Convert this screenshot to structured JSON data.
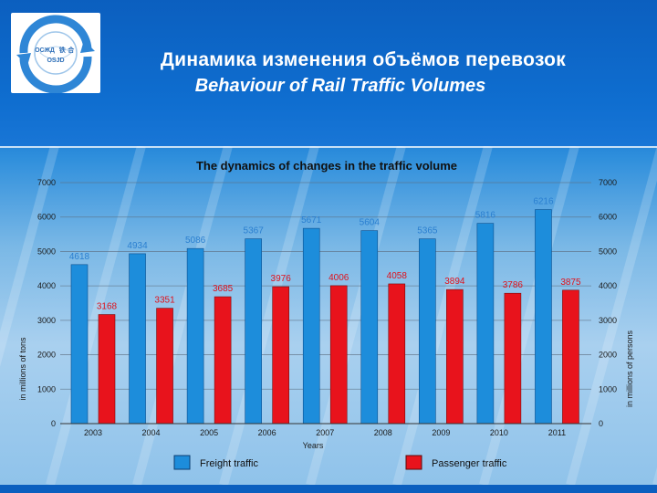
{
  "header": {
    "title_ru": "Динамика изменения объёмов перевозок",
    "title_en": "Behaviour of  Rail Traffic Volumes",
    "logo": {
      "name": "osjd-logo",
      "text_left": "ОСЖД",
      "text_right": "铁 合",
      "text_bottom": "OSJD"
    }
  },
  "colors": {
    "freight": "#1d8ddb",
    "passenger": "#e8131c",
    "freight_label": "#2a7fd0",
    "passenger_label": "#e0101a"
  },
  "chart_data": {
    "type": "bar",
    "title": "The dynamics of changes in the traffic volume",
    "xlabel": "Years",
    "ylabel_left": "in millions of tons",
    "ylabel_right": "in millions of persons",
    "ylim": [
      0,
      7000
    ],
    "yticks": [
      0,
      1000,
      2000,
      3000,
      4000,
      5000,
      6000,
      7000
    ],
    "grid": true,
    "legend_position": "bottom",
    "categories": [
      "2003",
      "2004",
      "2005",
      "2006",
      "2007",
      "2008",
      "2009",
      "2010",
      "2011"
    ],
    "series": [
      {
        "name": "Freight traffic",
        "values": [
          4618,
          4934,
          5086,
          5367,
          5671,
          5604,
          5365,
          5816,
          6216
        ]
      },
      {
        "name": "Passenger traffic",
        "values": [
          3168,
          3351,
          3685,
          3976,
          4006,
          4058,
          3894,
          3786,
          3875
        ]
      }
    ]
  }
}
